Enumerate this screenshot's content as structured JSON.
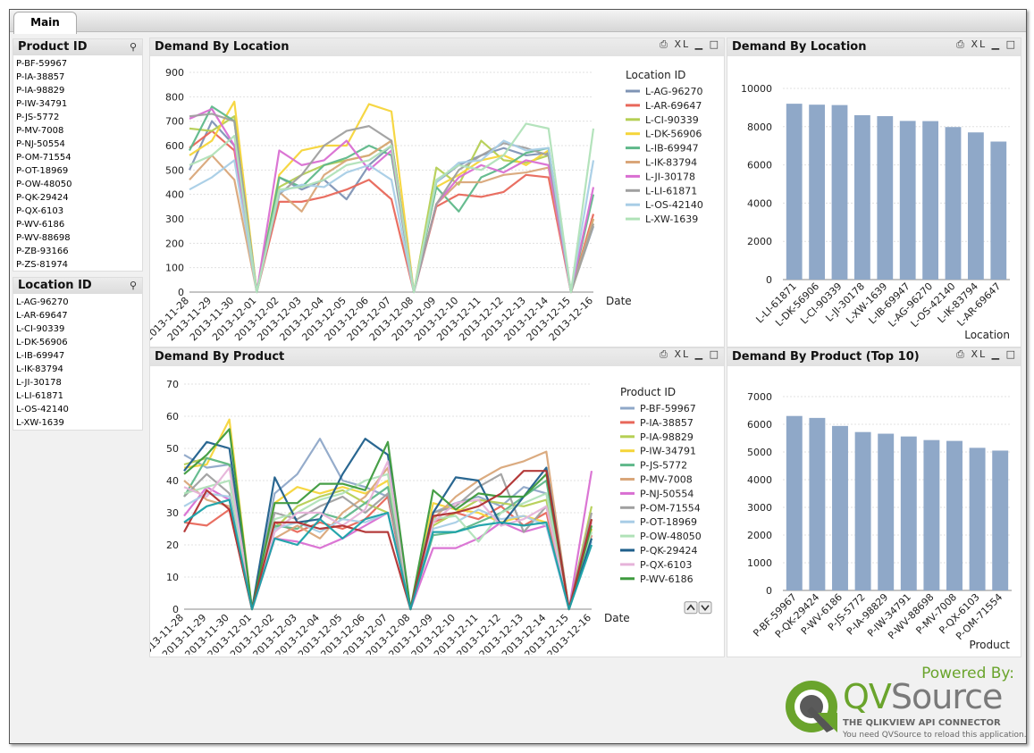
{
  "tab": {
    "label": "Main"
  },
  "product_listbox": {
    "title": "Product ID",
    "items": [
      "P-BF-59967",
      "P-IA-38857",
      "P-IA-98829",
      "P-IW-34791",
      "P-JS-5772",
      "P-MV-7008",
      "P-NJ-50554",
      "P-OM-71554",
      "P-OT-18969",
      "P-OW-48050",
      "P-QK-29424",
      "P-QX-6103",
      "P-WV-6186",
      "P-WV-88698",
      "P-ZB-93166",
      "P-ZS-81974"
    ]
  },
  "location_listbox": {
    "title": "Location ID",
    "items": [
      "L-AG-96270",
      "L-AR-69647",
      "L-CI-90339",
      "L-DK-56906",
      "L-IB-69947",
      "L-IK-83794",
      "L-JI-30178",
      "L-LI-61871",
      "L-OS-42140",
      "L-XW-1639"
    ]
  },
  "caption_icons": {
    "print": "⎙",
    "xl": "XL",
    "minimize": "▁",
    "maximize": "□"
  },
  "colors": {
    "bar": "#8fa8c8"
  },
  "chart_data": [
    {
      "id": "loc_line",
      "title": "Demand By Location",
      "type": "line",
      "xlabel": "Date",
      "legend_title": "Location ID",
      "ylim": [
        0,
        900
      ],
      "yticks": [
        0,
        100,
        200,
        300,
        400,
        500,
        600,
        700,
        800,
        900
      ],
      "categories": [
        "2013-11-28",
        "2013-11-29",
        "2013-11-30",
        "2013-12-01",
        "2013-12-02",
        "2013-12-03",
        "2013-12-04",
        "2013-12-05",
        "2013-12-06",
        "2013-12-07",
        "2013-12-08",
        "2013-12-09",
        "2013-12-10",
        "2013-12-11",
        "2013-12-12",
        "2013-12-13",
        "2013-12-14",
        "2013-12-15",
        "2013-12-16"
      ],
      "series": [
        {
          "name": "L-AG-96270",
          "color": "#7f94b5",
          "values": [
            500,
            700,
            600,
            0,
            470,
            420,
            460,
            380,
            520,
            600,
            0,
            450,
            520,
            560,
            590,
            560,
            570,
            0,
            270
          ]
        },
        {
          "name": "L-AR-69647",
          "color": "#e8675a",
          "values": [
            590,
            660,
            580,
            0,
            370,
            370,
            390,
            420,
            460,
            380,
            0,
            350,
            400,
            390,
            410,
            480,
            470,
            0,
            320
          ]
        },
        {
          "name": "L-CI-90339",
          "color": "#b5cf54",
          "values": [
            670,
            660,
            720,
            0,
            430,
            480,
            520,
            540,
            560,
            620,
            0,
            510,
            440,
            620,
            540,
            530,
            560,
            0,
            300
          ]
        },
        {
          "name": "L-DK-56906",
          "color": "#f5d53a",
          "values": [
            560,
            620,
            780,
            0,
            480,
            580,
            600,
            600,
            770,
            740,
            0,
            430,
            480,
            540,
            560,
            520,
            580,
            0,
            280
          ]
        },
        {
          "name": "L-IB-69947",
          "color": "#5fb88a",
          "values": [
            580,
            760,
            700,
            0,
            470,
            430,
            520,
            550,
            600,
            560,
            0,
            430,
            330,
            470,
            510,
            570,
            590,
            0,
            400
          ]
        },
        {
          "name": "L-IK-83794",
          "color": "#d9a679",
          "values": [
            460,
            560,
            460,
            0,
            410,
            330,
            480,
            540,
            560,
            620,
            0,
            360,
            450,
            450,
            480,
            490,
            510,
            0,
            300
          ]
        },
        {
          "name": "L-JI-30178",
          "color": "#d96fd2",
          "values": [
            710,
            750,
            600,
            0,
            580,
            520,
            540,
            620,
            500,
            580,
            0,
            360,
            470,
            520,
            490,
            540,
            520,
            0,
            430
          ]
        },
        {
          "name": "L-LI-61871",
          "color": "#a0a0a0",
          "values": [
            720,
            730,
            700,
            0,
            400,
            480,
            600,
            660,
            680,
            620,
            0,
            360,
            500,
            560,
            610,
            590,
            560,
            0,
            280
          ]
        },
        {
          "name": "L-OS-42140",
          "color": "#a8cde6",
          "values": [
            420,
            470,
            540,
            0,
            410,
            440,
            430,
            490,
            520,
            460,
            0,
            450,
            530,
            540,
            620,
            580,
            590,
            0,
            540
          ]
        },
        {
          "name": "L-XW-1639",
          "color": "#b0e2b8",
          "values": [
            520,
            560,
            640,
            0,
            420,
            430,
            460,
            520,
            540,
            600,
            0,
            460,
            520,
            500,
            560,
            690,
            670,
            0,
            670
          ]
        }
      ]
    },
    {
      "id": "loc_bar",
      "title": "Demand By Location",
      "type": "bar",
      "xlabel": "Location",
      "ylim": [
        0,
        10000
      ],
      "yticks": [
        0,
        2000,
        4000,
        6000,
        8000,
        10000
      ],
      "categories": [
        "L-LI-61871",
        "L-DK-56906",
        "L-CI-90339",
        "L-JI-30178",
        "L-XW-1639",
        "L-IB-69947",
        "L-AG-96270",
        "L-OS-42140",
        "L-IK-83794",
        "L-AR-69647"
      ],
      "values": [
        9200,
        9150,
        9130,
        8600,
        8550,
        8300,
        8290,
        7980,
        7700,
        7220
      ]
    },
    {
      "id": "prod_line",
      "title": "Demand By Product",
      "type": "line",
      "xlabel": "Date",
      "legend_title": "Product ID",
      "ylim": [
        0,
        70
      ],
      "yticks": [
        0,
        10,
        20,
        30,
        40,
        50,
        60,
        70
      ],
      "categories": [
        "2013-11-28",
        "2013-11-29",
        "2013-11-30",
        "2013-12-01",
        "2013-12-02",
        "2013-12-03",
        "2013-12-04",
        "2013-12-05",
        "2013-12-06",
        "2013-12-07",
        "2013-12-08",
        "2013-12-09",
        "2013-12-10",
        "2013-12-11",
        "2013-12-12",
        "2013-12-13",
        "2013-12-14",
        "2013-12-15",
        "2013-12-16"
      ],
      "series": [
        {
          "name": "P-BF-59967",
          "color": "#8fa8c8",
          "values": [
            48,
            44,
            45,
            0,
            36,
            42,
            53,
            40,
            38,
            35,
            0,
            30,
            33,
            35,
            32,
            38,
            36,
            0,
            25
          ]
        },
        {
          "name": "P-IA-38857",
          "color": "#e8675a",
          "values": [
            27,
            26,
            31,
            0,
            27,
            24,
            27,
            25,
            28,
            35,
            0,
            27,
            30,
            28,
            32,
            26,
            30,
            0,
            23
          ]
        },
        {
          "name": "P-IA-98829",
          "color": "#b5cf54",
          "values": [
            45,
            47,
            45,
            0,
            25,
            32,
            35,
            37,
            33,
            30,
            0,
            26,
            30,
            34,
            33,
            32,
            34,
            0,
            32
          ]
        },
        {
          "name": "P-IW-34791",
          "color": "#f5d53a",
          "values": [
            44,
            45,
            59,
            0,
            33,
            38,
            36,
            38,
            36,
            40,
            0,
            33,
            31,
            30,
            27,
            29,
            27,
            0,
            25
          ]
        },
        {
          "name": "P-JS-5772",
          "color": "#5fb88a",
          "values": [
            35,
            47,
            45,
            0,
            26,
            25,
            30,
            28,
            33,
            38,
            0,
            23,
            24,
            27,
            30,
            35,
            40,
            0,
            22
          ]
        },
        {
          "name": "P-MV-7008",
          "color": "#d9a679",
          "values": [
            40,
            34,
            32,
            0,
            22,
            26,
            22,
            30,
            35,
            44,
            0,
            28,
            35,
            40,
            44,
            46,
            49,
            0,
            28
          ]
        },
        {
          "name": "P-NJ-50554",
          "color": "#d96fd2",
          "values": [
            29,
            38,
            34,
            0,
            22,
            21,
            19,
            22,
            26,
            30,
            0,
            19,
            19,
            22,
            27,
            24,
            26,
            0,
            43
          ]
        },
        {
          "name": "P-OM-71554",
          "color": "#a0a0a0",
          "values": [
            35,
            42,
            36,
            0,
            30,
            28,
            32,
            35,
            30,
            36,
            0,
            30,
            32,
            38,
            42,
            24,
            32,
            0,
            30
          ]
        },
        {
          "name": "P-OT-18969",
          "color": "#a8cde6",
          "values": [
            32,
            36,
            35,
            0,
            25,
            27,
            24,
            28,
            27,
            30,
            0,
            25,
            27,
            31,
            28,
            29,
            26,
            0,
            21
          ]
        },
        {
          "name": "P-OW-48050",
          "color": "#b0e2b8",
          "values": [
            36,
            38,
            40,
            0,
            28,
            30,
            34,
            36,
            40,
            42,
            0,
            28,
            29,
            21,
            30,
            33,
            36,
            0,
            24
          ]
        },
        {
          "name": "P-QK-29424",
          "color": "#1f5f8b",
          "values": [
            43,
            52,
            50,
            0,
            41,
            27,
            28,
            42,
            53,
            48,
            0,
            30,
            41,
            40,
            26,
            35,
            44,
            0,
            22
          ]
        },
        {
          "name": "P-QX-6103",
          "color": "#e6b3d9",
          "values": [
            38,
            35,
            44,
            0,
            24,
            30,
            30,
            26,
            31,
            46,
            0,
            27,
            33,
            34,
            26,
            28,
            32,
            0,
            27
          ]
        },
        {
          "name": "P-WV-6186",
          "color": "#3d9a3d",
          "values": [
            42,
            48,
            56,
            0,
            33,
            33,
            39,
            39,
            37,
            52,
            0,
            37,
            31,
            36,
            35,
            35,
            42,
            0,
            26
          ]
        },
        {
          "name": "",
          "color": "#b03030",
          "values": [
            24,
            37,
            31,
            0,
            27,
            27,
            25,
            26,
            24,
            24,
            0,
            29,
            30,
            32,
            36,
            43,
            43,
            0,
            28
          ]
        },
        {
          "name": "",
          "color": "#1aa1a8",
          "values": [
            27,
            32,
            34,
            0,
            22,
            20,
            28,
            22,
            28,
            30,
            0,
            24,
            24,
            26,
            27,
            26,
            27,
            0,
            20
          ]
        }
      ]
    },
    {
      "id": "prod_bar",
      "title": "Demand By Product (Top 10)",
      "type": "bar",
      "xlabel": "Product",
      "ylim": [
        0,
        7000
      ],
      "yticks": [
        0,
        1000,
        2000,
        3000,
        4000,
        5000,
        6000,
        7000
      ],
      "categories": [
        "P-BF-59967",
        "P-QK-29424",
        "P-WV-6186",
        "P-JS-5772",
        "P-IA-98829",
        "P-IW-34791",
        "P-WV-88698",
        "P-MV-7008",
        "P-QX-6103",
        "P-OM-71554"
      ],
      "values": [
        6300,
        6230,
        5940,
        5720,
        5660,
        5560,
        5430,
        5400,
        5150,
        5050
      ]
    }
  ],
  "branding": {
    "powered_by": "Powered By:",
    "logo_q": "QV",
    "logo_rest": "Source",
    "tagline": "THE QLIKVIEW API CONNECTOR",
    "note": "You need QVSource to reload this application."
  }
}
